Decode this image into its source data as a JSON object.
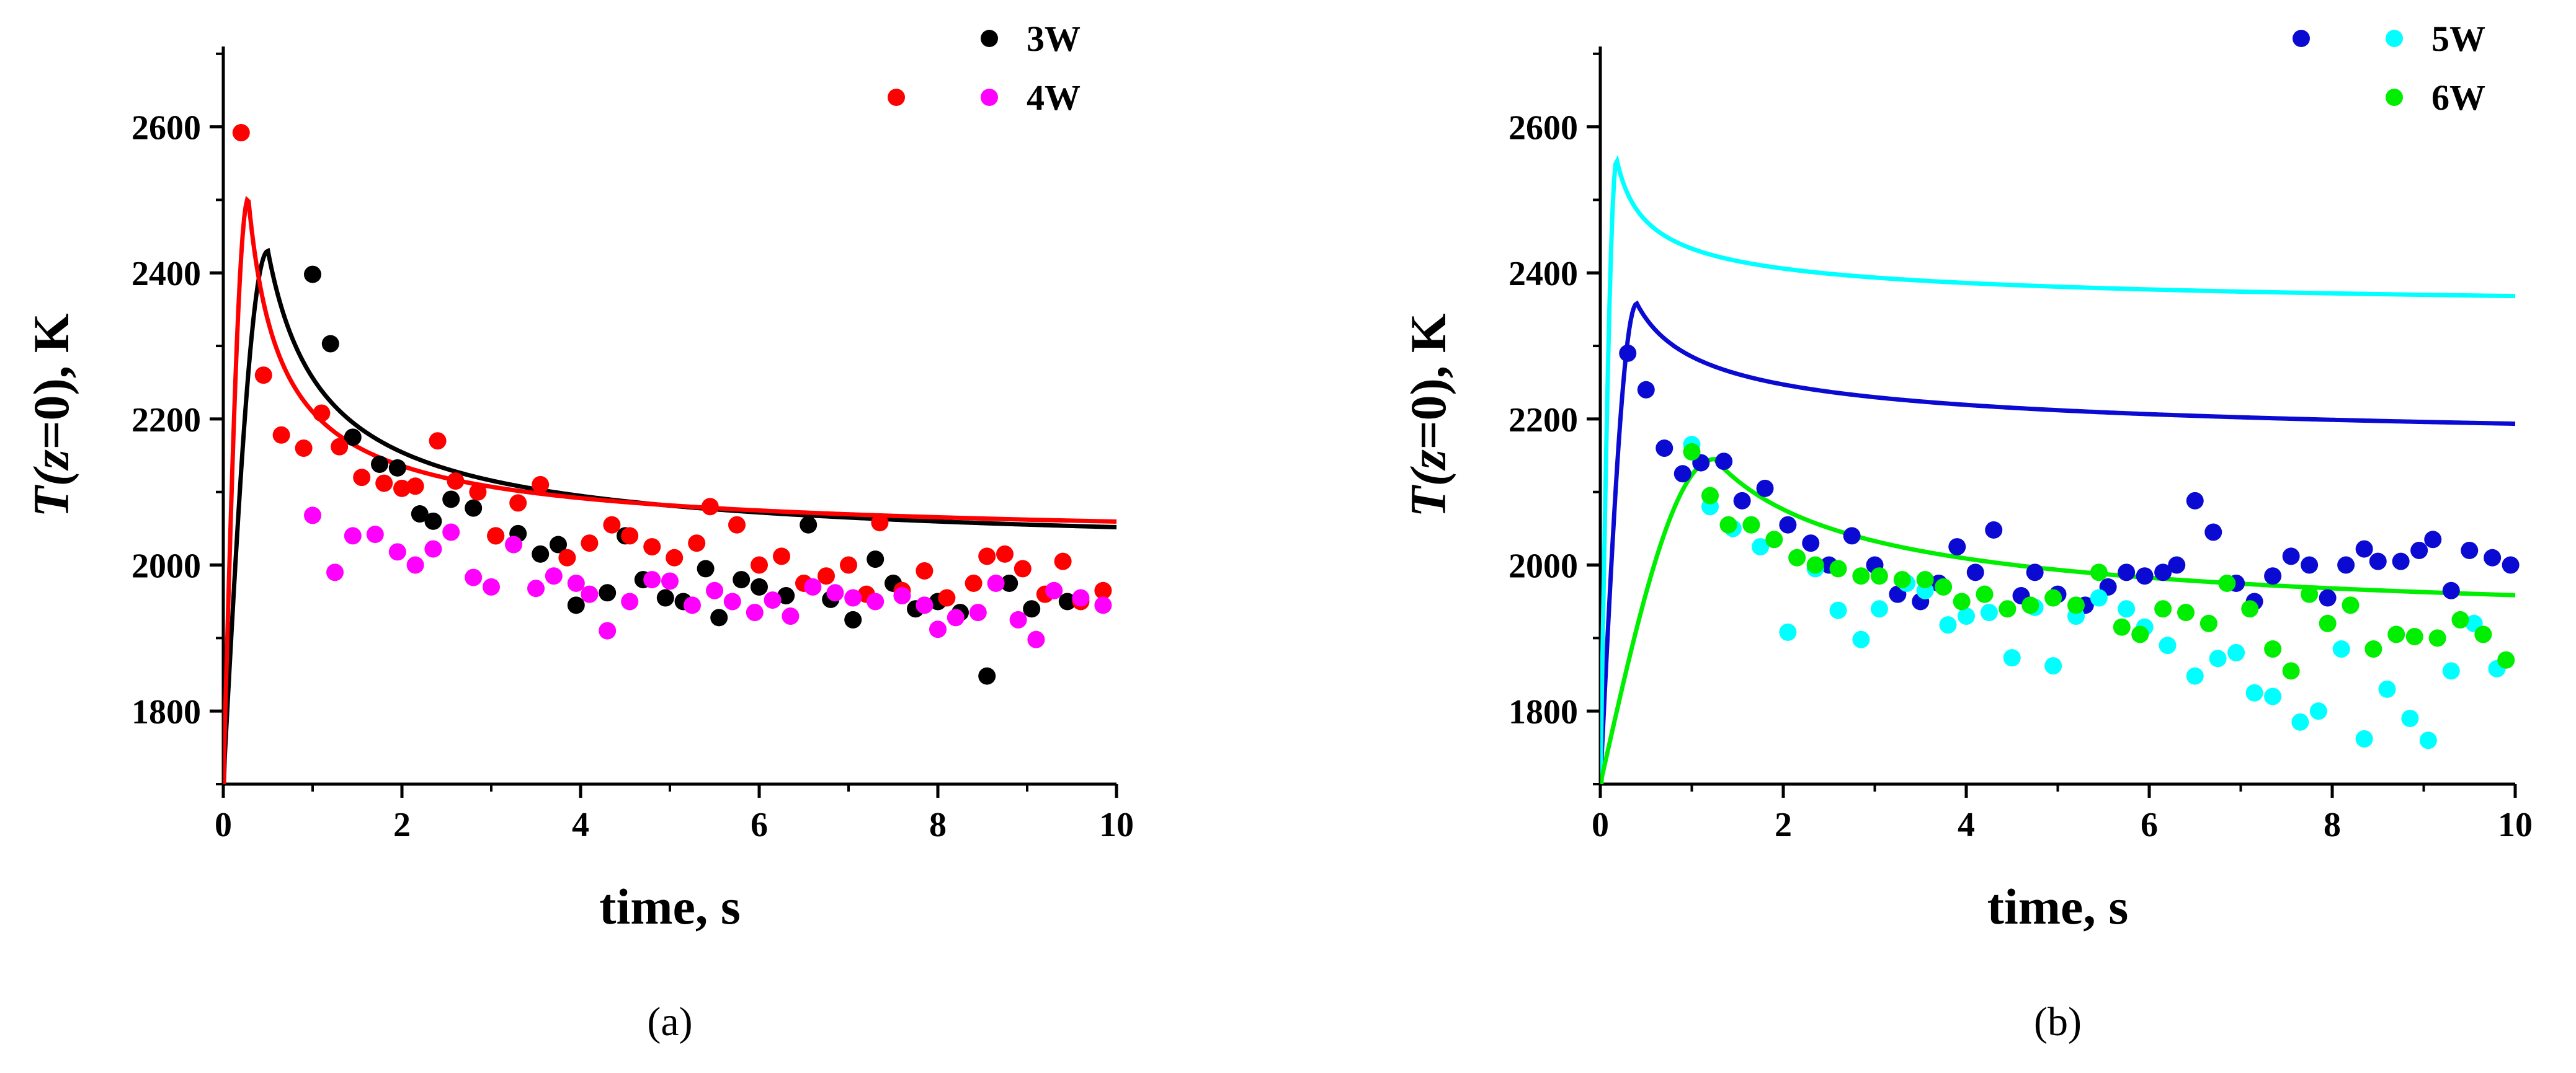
{
  "chart_data": [
    {
      "type": "scatter",
      "panel_label": "(a)",
      "title": "",
      "xlabel": "time, s",
      "ylabel_parts": [
        "T(",
        "z",
        "=0), K"
      ],
      "xlim": [
        0,
        10.0
      ],
      "ylim": [
        1700,
        2710
      ],
      "xticks": [
        0,
        2,
        4,
        6,
        8,
        10
      ],
      "yticks": [
        1800,
        2000,
        2200,
        2400,
        2600
      ],
      "legend_position": "top-right",
      "legend": [
        {
          "label": "3W",
          "markers": [
            "#000000"
          ]
        },
        {
          "label": "4W",
          "markers": [
            "#ff0000",
            "#ff00ff"
          ]
        }
      ],
      "scatter_series": [
        {
          "name": "3W",
          "color": "#000000",
          "points": [
            [
              1.0,
              2398
            ],
            [
              1.2,
              2303
            ],
            [
              1.45,
              2175
            ],
            [
              1.75,
              2138
            ],
            [
              1.95,
              2133
            ],
            [
              2.2,
              2070
            ],
            [
              2.35,
              2060
            ],
            [
              2.55,
              2090
            ],
            [
              2.8,
              2078
            ],
            [
              3.05,
              2040
            ],
            [
              3.3,
              2043
            ],
            [
              3.55,
              2015
            ],
            [
              3.75,
              2028
            ],
            [
              3.95,
              1945
            ],
            [
              4.3,
              1962
            ],
            [
              4.5,
              2040
            ],
            [
              4.7,
              1980
            ],
            [
              4.95,
              1955
            ],
            [
              5.15,
              1950
            ],
            [
              5.4,
              1995
            ],
            [
              5.55,
              1928
            ],
            [
              5.8,
              1980
            ],
            [
              6.0,
              1970
            ],
            [
              6.3,
              1958
            ],
            [
              6.55,
              2055
            ],
            [
              6.8,
              1953
            ],
            [
              7.05,
              1925
            ],
            [
              7.3,
              2008
            ],
            [
              7.5,
              1975
            ],
            [
              7.75,
              1940
            ],
            [
              8.0,
              1950
            ],
            [
              8.25,
              1935
            ],
            [
              8.55,
              1848
            ],
            [
              8.8,
              1975
            ],
            [
              9.05,
              1940
            ],
            [
              9.45,
              1950
            ]
          ]
        },
        {
          "name": "4W",
          "color": "#ff0000",
          "points": [
            [
              0.2,
              2592
            ],
            [
              0.45,
              2260
            ],
            [
              0.65,
              2178
            ],
            [
              0.9,
              2160
            ],
            [
              1.1,
              2208
            ],
            [
              1.3,
              2162
            ],
            [
              1.55,
              2120
            ],
            [
              1.8,
              2112
            ],
            [
              2.0,
              2105
            ],
            [
              2.15,
              2108
            ],
            [
              2.4,
              2170
            ],
            [
              2.6,
              2115
            ],
            [
              2.85,
              2100
            ],
            [
              3.05,
              2040
            ],
            [
              3.3,
              2085
            ],
            [
              3.55,
              2110
            ],
            [
              3.85,
              2010
            ],
            [
              4.1,
              2030
            ],
            [
              4.35,
              2055
            ],
            [
              4.55,
              2040
            ],
            [
              4.8,
              2025
            ],
            [
              5.05,
              2010
            ],
            [
              5.3,
              2030
            ],
            [
              5.45,
              2080
            ],
            [
              5.75,
              2055
            ],
            [
              6.0,
              2000
            ],
            [
              6.25,
              2012
            ],
            [
              6.5,
              1975
            ],
            [
              6.75,
              1985
            ],
            [
              7.0,
              2000
            ],
            [
              7.2,
              1960
            ],
            [
              7.35,
              2058
            ],
            [
              7.6,
              1965
            ],
            [
              7.85,
              1992
            ],
            [
              8.1,
              1955
            ],
            [
              8.4,
              1975
            ],
            [
              8.55,
              2012
            ],
            [
              8.75,
              2015
            ],
            [
              8.95,
              1995
            ],
            [
              9.2,
              1960
            ],
            [
              9.4,
              2005
            ],
            [
              9.6,
              1950
            ],
            [
              9.85,
              1965
            ]
          ]
        },
        {
          "name": "4W",
          "color": "#ff00ff",
          "points": [
            [
              1.0,
              2068
            ],
            [
              1.25,
              1990
            ],
            [
              1.45,
              2040
            ],
            [
              1.7,
              2042
            ],
            [
              1.95,
              2018
            ],
            [
              2.15,
              2000
            ],
            [
              2.35,
              2022
            ],
            [
              2.55,
              2045
            ],
            [
              2.8,
              1983
            ],
            [
              3.0,
              1970
            ],
            [
              3.25,
              2028
            ],
            [
              3.5,
              1968
            ],
            [
              3.7,
              1985
            ],
            [
              3.95,
              1975
            ],
            [
              4.1,
              1960
            ],
            [
              4.3,
              1910
            ],
            [
              4.55,
              1950
            ],
            [
              4.8,
              1980
            ],
            [
              5.0,
              1978
            ],
            [
              5.25,
              1945
            ],
            [
              5.5,
              1965
            ],
            [
              5.7,
              1950
            ],
            [
              5.95,
              1935
            ],
            [
              6.15,
              1952
            ],
            [
              6.35,
              1930
            ],
            [
              6.6,
              1970
            ],
            [
              6.85,
              1962
            ],
            [
              7.05,
              1955
            ],
            [
              7.3,
              1950
            ],
            [
              7.6,
              1958
            ],
            [
              7.85,
              1945
            ],
            [
              8.0,
              1912
            ],
            [
              8.2,
              1928
            ],
            [
              8.45,
              1935
            ],
            [
              8.65,
              1975
            ],
            [
              8.9,
              1925
            ],
            [
              9.1,
              1898
            ],
            [
              9.3,
              1965
            ],
            [
              9.6,
              1955
            ],
            [
              9.85,
              1945
            ]
          ]
        }
      ],
      "fit_curves": [
        {
          "name": "3W fit",
          "color": "#000000",
          "peak_time": 0.5,
          "peak_value": 2430,
          "baseline": 1700,
          "decay_a": 420,
          "decay_b": 0.77
        },
        {
          "name": "4W fit",
          "color": "#ff0000",
          "peak_time": 0.28,
          "peak_value": 2502,
          "baseline": 1700,
          "decay_a": 475,
          "decay_b": 0.75
        }
      ]
    },
    {
      "type": "scatter",
      "panel_label": "(b)",
      "title": "",
      "xlabel": "time, s",
      "ylabel_parts": [
        "T(",
        "z",
        "=0), K"
      ],
      "xlim": [
        0,
        10.0
      ],
      "ylim": [
        1700,
        2710
      ],
      "xticks": [
        0,
        2,
        4,
        6,
        8,
        10
      ],
      "yticks": [
        1800,
        2000,
        2200,
        2400,
        2600
      ],
      "legend_position": "top-right",
      "legend": [
        {
          "label": "5W",
          "markers": [
            "#0a0ad2",
            "#00ffff"
          ]
        },
        {
          "label": "6W",
          "markers": [
            "#00ee00"
          ]
        }
      ],
      "scatter_series": [
        {
          "name": "5W",
          "color": "#0a0ad2",
          "points": [
            [
              0.3,
              2290
            ],
            [
              0.5,
              2240
            ],
            [
              0.7,
              2160
            ],
            [
              0.9,
              2125
            ],
            [
              1.1,
              2140
            ],
            [
              1.35,
              2142
            ],
            [
              1.55,
              2088
            ],
            [
              1.8,
              2105
            ],
            [
              2.05,
              2055
            ],
            [
              2.3,
              2030
            ],
            [
              2.5,
              2000
            ],
            [
              2.75,
              2040
            ],
            [
              3.0,
              2000
            ],
            [
              3.25,
              1960
            ],
            [
              3.5,
              1950
            ],
            [
              3.7,
              1975
            ],
            [
              3.9,
              2025
            ],
            [
              4.1,
              1990
            ],
            [
              4.3,
              2048
            ],
            [
              4.6,
              1958
            ],
            [
              4.75,
              1990
            ],
            [
              5.0,
              1960
            ],
            [
              5.3,
              1945
            ],
            [
              5.55,
              1970
            ],
            [
              5.75,
              1990
            ],
            [
              5.95,
              1985
            ],
            [
              6.15,
              1990
            ],
            [
              6.3,
              2000
            ],
            [
              6.5,
              2088
            ],
            [
              6.7,
              2045
            ],
            [
              6.95,
              1975
            ],
            [
              7.15,
              1950
            ],
            [
              7.35,
              1985
            ],
            [
              7.55,
              2012
            ],
            [
              7.75,
              2000
            ],
            [
              7.95,
              1955
            ],
            [
              8.15,
              2000
            ],
            [
              8.35,
              2022
            ],
            [
              8.5,
              2005
            ],
            [
              8.75,
              2005
            ],
            [
              8.95,
              2020
            ],
            [
              9.1,
              2035
            ],
            [
              9.3,
              1965
            ],
            [
              9.5,
              2020
            ],
            [
              9.75,
              2010
            ],
            [
              9.95,
              2000
            ]
          ]
        },
        {
          "name": "5W",
          "color": "#00ffff",
          "points": [
            [
              1.0,
              2165
            ],
            [
              1.2,
              2080
            ],
            [
              1.45,
              2050
            ],
            [
              1.75,
              2025
            ],
            [
              2.05,
              1908
            ],
            [
              2.35,
              1995
            ],
            [
              2.6,
              1938
            ],
            [
              2.85,
              1898
            ],
            [
              3.05,
              1940
            ],
            [
              3.35,
              1975
            ],
            [
              3.55,
              1965
            ],
            [
              3.8,
              1918
            ],
            [
              4.0,
              1930
            ],
            [
              4.25,
              1935
            ],
            [
              4.5,
              1873
            ],
            [
              4.75,
              1942
            ],
            [
              4.95,
              1862
            ],
            [
              5.2,
              1930
            ],
            [
              5.45,
              1955
            ],
            [
              5.75,
              1940
            ],
            [
              5.95,
              1915
            ],
            [
              6.2,
              1890
            ],
            [
              6.5,
              1848
            ],
            [
              6.75,
              1872
            ],
            [
              6.95,
              1880
            ],
            [
              7.15,
              1825
            ],
            [
              7.35,
              1820
            ],
            [
              7.65,
              1785
            ],
            [
              7.85,
              1800
            ],
            [
              8.1,
              1885
            ],
            [
              8.35,
              1762
            ],
            [
              8.6,
              1830
            ],
            [
              8.85,
              1790
            ],
            [
              9.05,
              1760
            ],
            [
              9.3,
              1855
            ],
            [
              9.55,
              1920
            ],
            [
              9.8,
              1858
            ]
          ]
        },
        {
          "name": "6W",
          "color": "#00ee00",
          "points": [
            [
              1.0,
              2155
            ],
            [
              1.2,
              2095
            ],
            [
              1.4,
              2055
            ],
            [
              1.65,
              2055
            ],
            [
              1.9,
              2035
            ],
            [
              2.15,
              2010
            ],
            [
              2.35,
              2000
            ],
            [
              2.6,
              1995
            ],
            [
              2.85,
              1985
            ],
            [
              3.05,
              1985
            ],
            [
              3.3,
              1980
            ],
            [
              3.55,
              1980
            ],
            [
              3.75,
              1970
            ],
            [
              3.95,
              1950
            ],
            [
              4.2,
              1960
            ],
            [
              4.45,
              1940
            ],
            [
              4.7,
              1945
            ],
            [
              4.95,
              1955
            ],
            [
              5.2,
              1945
            ],
            [
              5.45,
              1990
            ],
            [
              5.7,
              1915
            ],
            [
              5.9,
              1905
            ],
            [
              6.15,
              1940
            ],
            [
              6.4,
              1935
            ],
            [
              6.65,
              1920
            ],
            [
              6.85,
              1975
            ],
            [
              7.1,
              1940
            ],
            [
              7.35,
              1885
            ],
            [
              7.55,
              1855
            ],
            [
              7.75,
              1960
            ],
            [
              7.95,
              1920
            ],
            [
              8.2,
              1945
            ],
            [
              8.45,
              1885
            ],
            [
              8.7,
              1905
            ],
            [
              8.9,
              1902
            ],
            [
              9.15,
              1900
            ],
            [
              9.4,
              1925
            ],
            [
              9.65,
              1905
            ],
            [
              9.9,
              1870
            ]
          ]
        }
      ],
      "fit_curves": [
        {
          "name": "5W fit (blue)",
          "color": "#0a0ad2",
          "peak_time": 0.4,
          "peak_value": 2358,
          "baseline": 1700,
          "decay_a": 215,
          "decay_b": 0.45
        },
        {
          "name": "5W fit (cyan)",
          "color": "#00ffff",
          "peak_time": 0.18,
          "peak_value": 2555,
          "baseline": 1700,
          "decay_a": 220,
          "decay_b": 0.47
        },
        {
          "name": "6W fit",
          "color": "#00ee00",
          "peak_time": 1.25,
          "peak_value": 2145,
          "baseline": 1700,
          "decay_a": 240,
          "decay_b": 0.72
        }
      ]
    }
  ]
}
